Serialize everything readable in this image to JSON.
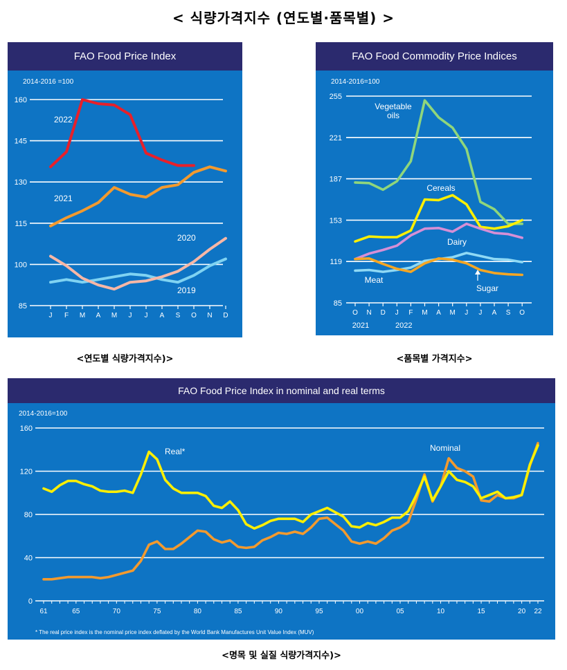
{
  "page_title": "< 식량가격지수 (연도별·품목별) >",
  "captions": {
    "by_year": "<연도별 식량가격지수)>",
    "by_commodity": "<품목별 가격지수>",
    "nominal_real": "<명목 및 실질 식량가격지수)>"
  },
  "colors": {
    "panel_bg": "#0e74c4",
    "header_bg": "#2b2a6e",
    "y2022": "#e8202a",
    "y2021": "#f39a2e",
    "y2020": "#f7b7a6",
    "y2019": "#7fd3f2",
    "vegetable_oils": "#8fd67c",
    "cereals": "#ffef00",
    "dairy": "#d58fd6",
    "meat": "#8fd9f5",
    "sugar": "#f5a623",
    "real": "#ffef00",
    "nominal": "#f39a2e"
  },
  "chart_data": [
    {
      "id": "by_year",
      "type": "line",
      "title": "FAO Food Price Index",
      "unit_label": "2014-2016 =100",
      "ylim": [
        85,
        160
      ],
      "yticks": [
        85,
        100,
        115,
        130,
        145,
        160
      ],
      "categories": [
        "J",
        "F",
        "M",
        "A",
        "M",
        "J",
        "J",
        "A",
        "S",
        "O",
        "N",
        "D"
      ],
      "grid": true,
      "series": [
        {
          "name": "2019",
          "color_key": "y2019",
          "values": [
            93.5,
            94.5,
            93.5,
            94.5,
            95.5,
            96.5,
            96.0,
            94.5,
            93.5,
            96.0,
            99.5,
            102.0
          ]
        },
        {
          "name": "2020",
          "color_key": "y2020",
          "values": [
            103.0,
            99.5,
            95.0,
            92.5,
            91.0,
            93.5,
            94.0,
            95.5,
            97.5,
            101.0,
            105.5,
            109.5
          ]
        },
        {
          "name": "2021",
          "color_key": "y2021",
          "values": [
            114.0,
            117.0,
            119.5,
            122.5,
            128.0,
            125.5,
            124.5,
            128.0,
            129.0,
            133.5,
            135.5,
            134.0
          ]
        },
        {
          "name": "2022",
          "color_key": "y2022",
          "values": [
            135.5,
            141.0,
            160.0,
            158.5,
            158.0,
            154.5,
            140.5,
            138.0,
            136.0,
            136.0,
            null,
            null
          ]
        }
      ]
    },
    {
      "id": "by_commodity",
      "type": "line",
      "title": "FAO Food Commodity Price Indices",
      "unit_label": "2014-2016=100",
      "ylim": [
        85,
        255
      ],
      "yticks": [
        85,
        119,
        153,
        187,
        221,
        255
      ],
      "categories": [
        "O",
        "N",
        "D",
        "J",
        "F",
        "M",
        "A",
        "M",
        "J",
        "J",
        "A",
        "S",
        "O"
      ],
      "year_labels": [
        {
          "label": "2021",
          "at_index": 0
        },
        {
          "label": "2022",
          "at_index": 3
        }
      ],
      "grid": true,
      "series": [
        {
          "name": "Vegetable oils",
          "name_lines": [
            "Vegetable",
            "oils"
          ],
          "color_key": "vegetable_oils",
          "values": [
            184,
            183.5,
            178,
            185,
            201.5,
            251.5,
            237.5,
            229,
            211.5,
            168,
            162,
            150,
            150
          ]
        },
        {
          "name": "Cereals",
          "color_key": "cereals",
          "values": [
            135.5,
            139.5,
            139,
            139,
            144.5,
            170,
            169.5,
            173.5,
            166,
            147.5,
            146,
            148,
            153
          ]
        },
        {
          "name": "Dairy",
          "color_key": "dairy",
          "values": [
            121,
            125.5,
            128.5,
            132,
            140.5,
            146,
            146.5,
            143.5,
            150,
            146,
            142.5,
            141.5,
            138.5
          ]
        },
        {
          "name": "Meat",
          "color_key": "meat",
          "values": [
            111.5,
            112,
            110.5,
            112,
            114,
            119.5,
            121,
            122.5,
            126,
            123.5,
            121,
            120.5,
            118.5
          ]
        },
        {
          "name": "Sugar",
          "color_key": "sugar",
          "values": [
            121,
            121.5,
            117,
            113,
            110.5,
            117.5,
            121.5,
            120.5,
            117.5,
            112,
            109.5,
            108.5,
            108
          ]
        }
      ]
    },
    {
      "id": "nominal_real",
      "type": "line",
      "title": "FAO Food Price Index in nominal and real terms",
      "unit_label": "2014-2016=100",
      "ylim": [
        0,
        160
      ],
      "yticks": [
        0,
        40,
        80,
        120,
        160
      ],
      "x": [
        1961,
        1962,
        1963,
        1964,
        1965,
        1966,
        1967,
        1968,
        1969,
        1970,
        1971,
        1972,
        1973,
        1974,
        1975,
        1976,
        1977,
        1978,
        1979,
        1980,
        1981,
        1982,
        1983,
        1984,
        1985,
        1986,
        1987,
        1988,
        1989,
        1990,
        1991,
        1992,
        1993,
        1994,
        1995,
        1996,
        1997,
        1998,
        1999,
        2000,
        2001,
        2002,
        2003,
        2004,
        2005,
        2006,
        2007,
        2008,
        2009,
        2010,
        2011,
        2012,
        2013,
        2014,
        2015,
        2016,
        2017,
        2018,
        2019,
        2020,
        2021,
        2022
      ],
      "xticks": [
        {
          "value": 1961,
          "label": "61"
        },
        {
          "value": 1965,
          "label": "65"
        },
        {
          "value": 1970,
          "label": "70"
        },
        {
          "value": 1975,
          "label": "75"
        },
        {
          "value": 1980,
          "label": "80"
        },
        {
          "value": 1985,
          "label": "85"
        },
        {
          "value": 1990,
          "label": "90"
        },
        {
          "value": 1995,
          "label": "95"
        },
        {
          "value": 2000,
          "label": "00"
        },
        {
          "value": 2005,
          "label": "05"
        },
        {
          "value": 2010,
          "label": "10"
        },
        {
          "value": 2015,
          "label": "15"
        },
        {
          "value": 2020,
          "label": "20"
        },
        {
          "value": 2022,
          "label": "22"
        }
      ],
      "grid": true,
      "series": [
        {
          "name": "Real*",
          "color_key": "real",
          "values": [
            104,
            101,
            107,
            111,
            111,
            108,
            106,
            102,
            101,
            101,
            102,
            100,
            117,
            138,
            131,
            112,
            104,
            100,
            100,
            100,
            97,
            88,
            86,
            92,
            84,
            71,
            67,
            70,
            74,
            76,
            76,
            76,
            73,
            80,
            83,
            86,
            82,
            78,
            69,
            68,
            72,
            70,
            73,
            77,
            77,
            83,
            98,
            115,
            93,
            106,
            120,
            112,
            110,
            106,
            95,
            98,
            101,
            95,
            96,
            98,
            126,
            144
          ]
        },
        {
          "name": "Nominal",
          "color_key": "nominal",
          "values": [
            20,
            20,
            21,
            22,
            22,
            22,
            22,
            21,
            22,
            24,
            26,
            28,
            37,
            52,
            55,
            48,
            48,
            53,
            59,
            65,
            64,
            57,
            54,
            56,
            50,
            49,
            50,
            56,
            59,
            63,
            62,
            64,
            62,
            68,
            76,
            77,
            71,
            65,
            55,
            53,
            55,
            53,
            58,
            65,
            68,
            73,
            94,
            117,
            92,
            106,
            132,
            123,
            120,
            115,
            93,
            92,
            98,
            95,
            95,
            98,
            125,
            146
          ]
        }
      ],
      "footnote": "* The real price index is the nominal price index deflated by the World Bank Manufactures Unit Value Index (MUV)"
    }
  ]
}
